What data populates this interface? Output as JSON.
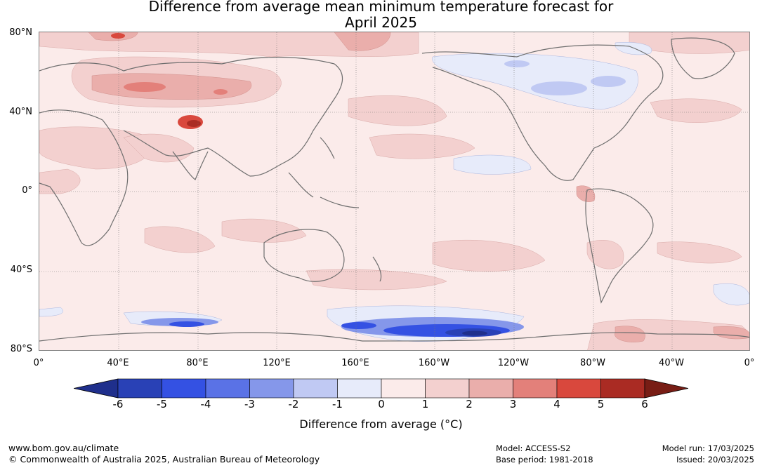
{
  "title": {
    "line1": "Difference from average mean minimum temperature forecast for",
    "line2": "April 2025"
  },
  "map": {
    "lat_labels": [
      "80°N",
      "40°N",
      "0°",
      "40°S",
      "80°S"
    ],
    "lon_labels": [
      "0°",
      "40°E",
      "80°E",
      "120°E",
      "160°E",
      "160°W",
      "120°W",
      "80°W",
      "40°W",
      "0°"
    ],
    "ocean_base_color": "#fbebea"
  },
  "colorbar": {
    "label": "Difference from average (°C)",
    "ticks": [
      "-6",
      "-5",
      "-4",
      "-3",
      "-2",
      "-1",
      "0",
      "1",
      "2",
      "3",
      "4",
      "5",
      "6"
    ],
    "colors": [
      "#1f2f8c",
      "#2941b6",
      "#3451e3",
      "#5a72e6",
      "#8597ea",
      "#c0c9f3",
      "#e7ebfa",
      "#fbebea",
      "#f3d0cf",
      "#eaaeab",
      "#e3807a",
      "#d9483d",
      "#aa2b23",
      "#781d15"
    ]
  },
  "footer": {
    "url": "www.bom.gov.au/climate",
    "copyright": "© Commonwealth of Australia 2025, Australian Bureau of Meteorology",
    "model": "Model: ACCESS-S2",
    "base_period": "Base period: 1981-2018",
    "model_run": "Model run: 17/03/2025",
    "issued": "Issued: 20/03/2025"
  }
}
